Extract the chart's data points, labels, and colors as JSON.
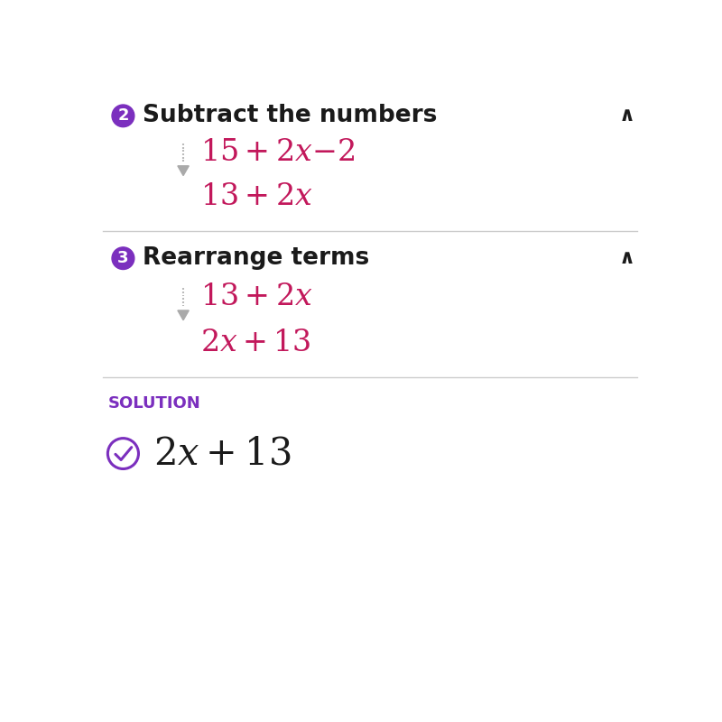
{
  "bg_color": "#ffffff",
  "purple_color": "#7B2FBE",
  "crimson_color": "#C2185B",
  "dark_text_color": "#1a1a1a",
  "gray_color": "#aaaaaa",
  "divider_color": "#cccccc",
  "step2_number": "2",
  "step2_title": "Subtract the numbers",
  "step3_number": "3",
  "step3_title": "Rearrange terms",
  "solution_label": "SOLUTION",
  "caret_symbol": "∧",
  "figw": 8.0,
  "figh": 8.0,
  "dpi": 100
}
